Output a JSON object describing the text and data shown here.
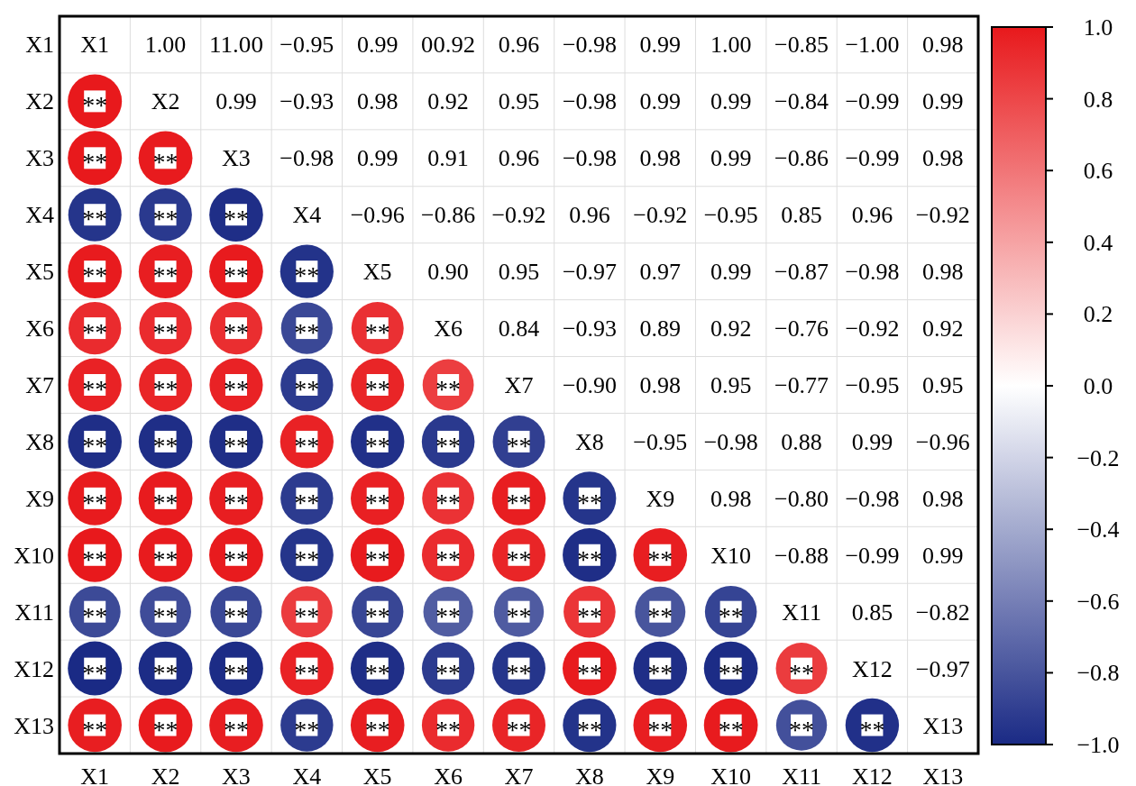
{
  "chart_data": {
    "type": "heatmap",
    "categories": [
      "X1",
      "X2",
      "X3",
      "X4",
      "X5",
      "X6",
      "X7",
      "X8",
      "X9",
      "X10",
      "X11",
      "X12",
      "X13"
    ],
    "y_categories": [
      "X1",
      "X2",
      "X3",
      "X4",
      "X5",
      "X6",
      "X7",
      "X8",
      "X9",
      "X10",
      "X11",
      "X12",
      "X13"
    ],
    "cells": [
      [
        null,
        null,
        null,
        null,
        null,
        null,
        null,
        null,
        null,
        null,
        null,
        null,
        null
      ],
      [
        1.0,
        null,
        null,
        null,
        null,
        null,
        null,
        null,
        null,
        null,
        null,
        null,
        null
      ],
      [
        1.0,
        0.99,
        null,
        null,
        null,
        null,
        null,
        null,
        null,
        null,
        null,
        null,
        null
      ],
      [
        -0.95,
        -0.93,
        -0.98,
        null,
        null,
        null,
        null,
        null,
        null,
        null,
        null,
        null,
        null
      ],
      [
        0.99,
        0.98,
        0.99,
        -0.96,
        null,
        null,
        null,
        null,
        null,
        null,
        null,
        null,
        null
      ],
      [
        0.92,
        0.92,
        0.91,
        -0.86,
        0.9,
        null,
        null,
        null,
        null,
        null,
        null,
        null,
        null
      ],
      [
        0.96,
        0.95,
        0.96,
        -0.92,
        0.95,
        0.84,
        null,
        null,
        null,
        null,
        null,
        null,
        null
      ],
      [
        -0.98,
        -0.98,
        -0.98,
        0.96,
        -0.97,
        -0.93,
        -0.9,
        null,
        null,
        null,
        null,
        null,
        null
      ],
      [
        0.99,
        0.99,
        0.98,
        -0.92,
        0.97,
        0.89,
        0.98,
        -0.95,
        null,
        null,
        null,
        null,
        null
      ],
      [
        1.0,
        0.99,
        0.99,
        -0.95,
        0.99,
        0.92,
        0.95,
        -0.98,
        0.98,
        null,
        null,
        null,
        null
      ],
      [
        -0.85,
        -0.84,
        -0.86,
        0.85,
        -0.87,
        -0.76,
        -0.77,
        0.88,
        -0.8,
        -0.88,
        null,
        null,
        null
      ],
      [
        -1.0,
        -0.99,
        -0.99,
        0.96,
        -0.98,
        -0.92,
        -0.95,
        0.99,
        -0.98,
        -0.99,
        0.85,
        null,
        null
      ],
      [
        0.98,
        0.99,
        0.98,
        -0.92,
        0.98,
        0.92,
        0.95,
        -0.96,
        0.98,
        0.99,
        -0.82,
        -0.97,
        null
      ]
    ],
    "cell_labels": [
      [
        "X1",
        "1.00",
        "11.00",
        "−0.95",
        "0.99",
        "00.92",
        "0.96",
        "−0.98",
        "0.99",
        "1.00",
        "−0.85",
        "−1.00",
        "0.98"
      ],
      [
        "**",
        "X2",
        "0.99",
        "−0.93",
        "0.98",
        "0.92",
        "0.95",
        "−0.98",
        "0.99",
        "0.99",
        "−0.84",
        "−0.99",
        "0.99"
      ],
      [
        "**",
        "**",
        "X3",
        "−0.98",
        "0.99",
        "0.91",
        "0.96",
        "−0.98",
        "0.98",
        "0.99",
        "−0.86",
        "−0.99",
        "0.98"
      ],
      [
        "**",
        "**",
        "**",
        "X4",
        "−0.96",
        "−0.86",
        "−0.92",
        "0.96",
        "−0.92",
        "−0.95",
        "0.85",
        "0.96",
        "−0.92"
      ],
      [
        "**",
        "**",
        "**",
        "**",
        "X5",
        "0.90",
        "0.95",
        "−0.97",
        "0.97",
        "0.99",
        "−0.87",
        "−0.98",
        "0.98"
      ],
      [
        "**",
        "**",
        "**",
        "**",
        "**",
        "X6",
        "0.84",
        "−0.93",
        "0.89",
        "0.92",
        "−0.76",
        "−0.92",
        "0.92"
      ],
      [
        "**",
        "**",
        "**",
        "**",
        "**",
        "**",
        "X7",
        "−0.90",
        "0.98",
        "0.95",
        "−0.77",
        "−0.95",
        "0.95"
      ],
      [
        "**",
        "**",
        "**",
        "**",
        "**",
        "**",
        "**",
        "X8",
        "−0.95",
        "−0.98",
        "0.88",
        "0.99",
        "−0.96"
      ],
      [
        "**",
        "**",
        "**",
        "**",
        "**",
        "**",
        "**",
        "**",
        "X9",
        "0.98",
        "−0.80",
        "−0.98",
        "0.98"
      ],
      [
        "**",
        "**",
        "**",
        "**",
        "**",
        "**",
        "**",
        "**",
        "**",
        "X10",
        "−0.88",
        "−0.99",
        "0.99"
      ],
      [
        "**",
        "**",
        "**",
        "**",
        "**",
        "**",
        "**",
        "**",
        "**",
        "**",
        "X11",
        "0.85",
        "−0.82"
      ],
      [
        "**",
        "**",
        "**",
        "**",
        "**",
        "**",
        "**",
        "**",
        "**",
        "**",
        "**",
        "X12",
        "−0.97"
      ],
      [
        "**",
        "**",
        "**",
        "**",
        "**",
        "**",
        "**",
        "**",
        "**",
        "**",
        "**",
        "**",
        "X13"
      ]
    ],
    "clim": [
      -1,
      1
    ],
    "cticks": [
      {
        "value": 1,
        "label": "1.0"
      },
      {
        "value": 0.8,
        "label": "0.8"
      },
      {
        "value": 0.6,
        "label": "0.6"
      },
      {
        "value": 0.4,
        "label": "0.4"
      },
      {
        "value": 0.2,
        "label": "0.2"
      },
      {
        "value": 0,
        "label": "0.0"
      },
      {
        "value": -0.2,
        "label": "−0.2"
      },
      {
        "value": -0.4,
        "label": "−0.4"
      },
      {
        "value": -0.6,
        "label": "−0.6"
      },
      {
        "value": -0.8,
        "label": "−0.8"
      },
      {
        "value": -1,
        "label": "−1.0"
      }
    ],
    "colors": [
      "#1a2a85",
      "#ffffff",
      "#e8191c"
    ],
    "grid": true
  }
}
